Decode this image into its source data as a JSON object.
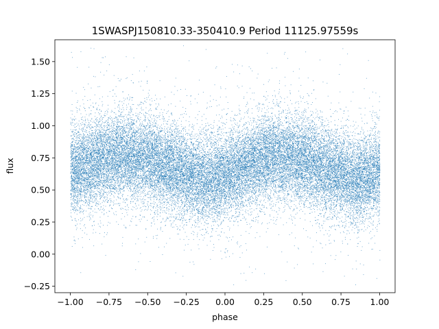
{
  "chart_data": {
    "type": "scatter",
    "title": "1SWASPJ150810.33-350410.9 Period 11125.97559s",
    "xlabel": "phase",
    "ylabel": "flux",
    "xlim": [
      -1.1,
      1.1
    ],
    "ylim": [
      -0.3,
      1.67
    ],
    "x_ticks": [
      -1.0,
      -0.75,
      -0.5,
      -0.25,
      0.0,
      0.25,
      0.5,
      0.75,
      1.0
    ],
    "x_tick_labels": [
      "−1.00",
      "−0.75",
      "−0.50",
      "−0.25",
      "0.00",
      "0.25",
      "0.50",
      "0.75",
      "1.00"
    ],
    "y_ticks": [
      -0.25,
      0.0,
      0.25,
      0.5,
      0.75,
      1.0,
      1.25,
      1.5
    ],
    "y_tick_labels": [
      "−0.25",
      "0.00",
      "0.25",
      "0.50",
      "0.75",
      "1.00",
      "1.25",
      "1.50"
    ],
    "grid": false,
    "series": [
      {
        "color": "#1f77b4",
        "x_range": [
          -1.0,
          1.0
        ],
        "mean_flux_profile": {
          "phase": [
            -1.0,
            -0.75,
            -0.6,
            -0.5,
            -0.35,
            -0.25,
            -0.15,
            0.0,
            0.25,
            0.4,
            0.5,
            0.65,
            0.75,
            0.85,
            1.0
          ],
          "flux": [
            0.66,
            0.75,
            0.76,
            0.74,
            0.68,
            0.62,
            0.58,
            0.62,
            0.75,
            0.76,
            0.74,
            0.66,
            0.62,
            0.58,
            0.64
          ]
        },
        "scatter_sigma": 0.17,
        "point_count": 30000
      }
    ]
  }
}
